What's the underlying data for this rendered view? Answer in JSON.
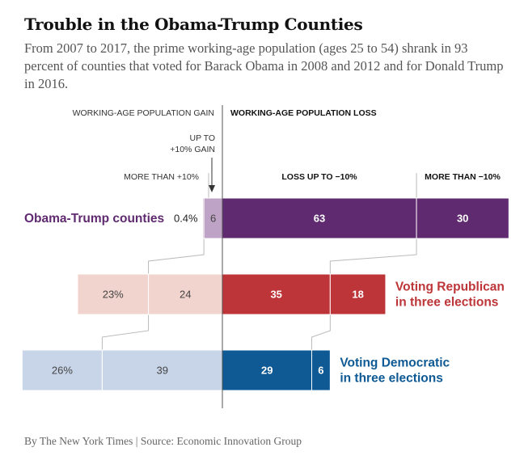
{
  "title": "Trouble in the Obama-Trump Counties",
  "subtitle": "From 2007 to 2017, the prime working-age population (ages 25 to 54) shrank in 93 percent of counties that voted for Barack Obama in 2008 and 2012 and for Donald Trump in 2016.",
  "credit": "By The New York Times | Source: Economic Innovation Group",
  "headers": {
    "gain": "WORKING-AGE POPULATION GAIN",
    "loss": "WORKING-AGE POPULATION LOSS",
    "up_to_gain_line1": "UP TO",
    "up_to_gain_line2": "+10% GAIN",
    "more_than_gain": "MORE THAN +10%",
    "loss_up_to": "LOSS UP TO −10%",
    "more_than_loss": "MORE THAN −10%"
  },
  "colors": {
    "obama_trump": "#5f2a6f",
    "obama_trump_light": "#bea3c6",
    "republican": "#bd3538",
    "republican_light": "#f2d4ce",
    "democratic": "#0f5a94",
    "democratic_light": "#c8d5e8",
    "connector": "#bbbbbb",
    "axis": "#555555"
  },
  "chart_data": {
    "type": "bar",
    "orientation": "horizontal",
    "stacked": true,
    "unit": "percent of counties",
    "center_line": "0% population change",
    "categories": [
      "Obama-Trump counties",
      "Voting Republican in three elections",
      "Voting Democratic in three elections"
    ],
    "series": [
      {
        "name": "More than +10%",
        "side": "gain",
        "values": [
          0.4,
          23,
          26
        ],
        "labels": [
          "0.4%",
          "23%",
          "26%"
        ]
      },
      {
        "name": "Up to +10% gain",
        "side": "gain",
        "values": [
          6,
          24,
          39
        ],
        "labels": [
          "6",
          "24",
          "39"
        ]
      },
      {
        "name": "Loss up to −10%",
        "side": "loss",
        "values": [
          63,
          35,
          29
        ],
        "labels": [
          "63",
          "35",
          "29"
        ]
      },
      {
        "name": "More than −10%",
        "side": "loss",
        "values": [
          30,
          18,
          6
        ],
        "labels": [
          "30",
          "18",
          "6"
        ]
      }
    ],
    "row_labels": [
      {
        "lines": [
          "Obama-Trump counties"
        ],
        "position": "left"
      },
      {
        "lines": [
          "Voting Republican",
          "in three elections"
        ],
        "position": "right"
      },
      {
        "lines": [
          "Voting Democratic",
          "in three elections"
        ],
        "position": "right"
      }
    ]
  }
}
